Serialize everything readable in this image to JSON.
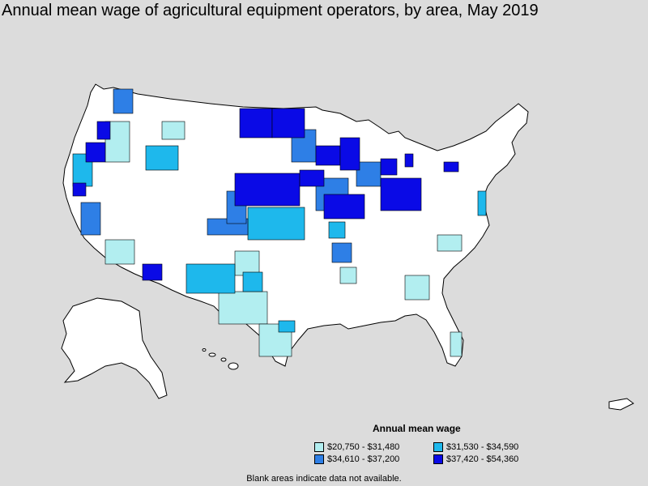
{
  "title": "Annual mean wage of agricultural equipment operators, by area, May 2019",
  "legend": {
    "title": "Annual mean wage",
    "items": [
      {
        "label": "$20,750 - $31,480",
        "color": "#b2eef0"
      },
      {
        "label": "$31,530 - $34,590",
        "color": "#1eb8ec"
      },
      {
        "label": "$34,610 - $37,200",
        "color": "#2e7fe6"
      },
      {
        "label": "$37,420 - $54,360",
        "color": "#0a0ae6"
      }
    ]
  },
  "note": "Blank areas indicate data not available.",
  "colors": {
    "background": "#dcdcdc",
    "land": "#ffffff",
    "border": "#000000"
  }
}
